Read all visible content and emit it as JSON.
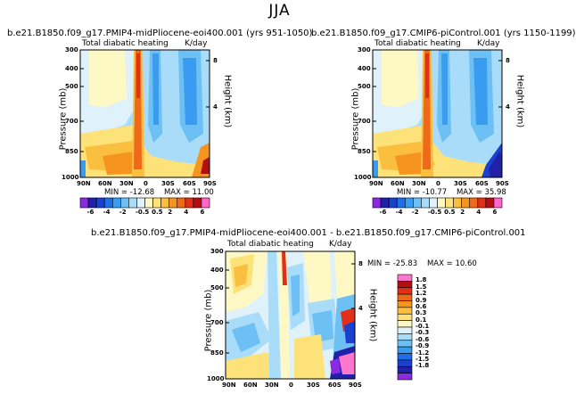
{
  "figure_title": "JJA",
  "chart_data": [
    {
      "type": "heatmap",
      "title": "b.e21.B1850.f09_g17.PMIP4-midPliocene-eoi400.001 (yrs 951-1050)",
      "field": "Total diabatic heating",
      "units": "K/day",
      "xlabel": "",
      "ylabel": "Pressure (mb)",
      "y2label": "Height (km)",
      "x_ticks": [
        "90N",
        "60N",
        "30N",
        "0",
        "30S",
        "60S",
        "90S"
      ],
      "y_ticks": [
        "300",
        "400",
        "500",
        "700",
        "850",
        "1000"
      ],
      "y2_ticks": [
        "8",
        "4"
      ],
      "stats": {
        "min_label": "MIN =",
        "min": "-12.68",
        "max_label": "MAX =",
        "max": "11.00"
      },
      "colorbar_labels": [
        "-6",
        "-4",
        "-2",
        "-0.5",
        "0.5",
        "2",
        "4",
        "6"
      ]
    },
    {
      "type": "heatmap",
      "title": "b.e21.B1850.f09_g17.CMIP6-piControl.001 (yrs 1150-1199)",
      "field": "Total diabatic heating",
      "units": "K/day",
      "xlabel": "",
      "ylabel": "Pressure (mb)",
      "y2label": "Height (km)",
      "x_ticks": [
        "90N",
        "60N",
        "30N",
        "0",
        "30S",
        "60S",
        "90S"
      ],
      "y_ticks": [
        "300",
        "400",
        "500",
        "700",
        "850",
        "1000"
      ],
      "y2_ticks": [
        "8",
        "4"
      ],
      "stats": {
        "min_label": "MIN =",
        "min": "-10.77",
        "max_label": "MAX =",
        "max": "35.98"
      },
      "colorbar_labels": [
        "-6",
        "-4",
        "-2",
        "-0.5",
        "0.5",
        "2",
        "4",
        "6"
      ]
    },
    {
      "type": "heatmap",
      "title": "b.e21.B1850.f09_g17.PMIP4-midPliocene-eoi400.001 - b.e21.B1850.f09_g17.CMIP6-piControl.001",
      "field": "Total diabatic heating",
      "units": "K/day",
      "xlabel": "",
      "ylabel": "Pressure (mb)",
      "y2label": "Height (km)",
      "x_ticks": [
        "90N",
        "60N",
        "30N",
        "0",
        "30S",
        "60S",
        "90S"
      ],
      "y_ticks": [
        "300",
        "400",
        "500",
        "700",
        "850",
        "1000"
      ],
      "y2_ticks": [
        "8",
        "4"
      ],
      "stats": {
        "min_label": "MIN =",
        "min": "-25.83",
        "max_label": "MAX =",
        "max": "10.60"
      },
      "colorbar_labels": [
        "1.8",
        "1.5",
        "1.2",
        "0.9",
        "0.6",
        "0.3",
        "0.1",
        "-0.1",
        "-0.3",
        "-0.6",
        "-0.9",
        "-1.2",
        "-1.5",
        "-1.8"
      ]
    }
  ],
  "colors": {
    "top_scale": [
      "#8a2be2",
      "#2020a8",
      "#1a40d0",
      "#1e6ee6",
      "#3a9cf0",
      "#6cc0f4",
      "#a8dcf8",
      "#dff2fb",
      "#fdf8c4",
      "#fde27a",
      "#fbbf3f",
      "#f59520",
      "#ee6a1a",
      "#e23018",
      "#b21010",
      "#ff66cc"
    ],
    "diff_scale": [
      "#ff77cc",
      "#b21010",
      "#e23018",
      "#ee6a1a",
      "#f59520",
      "#fbbf3f",
      "#fde27a",
      "#fdf8c4",
      "#dff2fb",
      "#a8dcf8",
      "#6cc0f4",
      "#3a9cf0",
      "#1e6ee6",
      "#1a40d0",
      "#2020a8",
      "#8a2be2"
    ]
  }
}
